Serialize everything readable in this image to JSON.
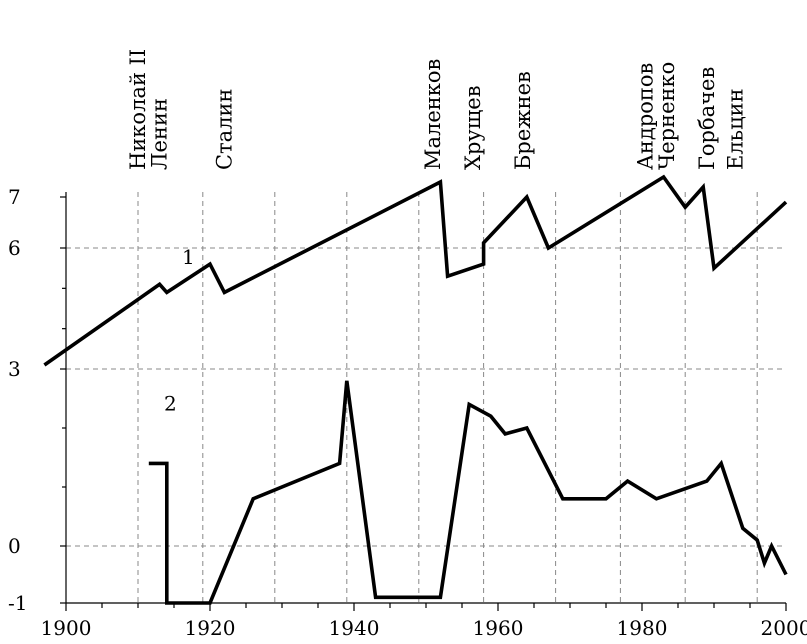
{
  "chart_data": {
    "type": "line",
    "title": "",
    "xlabel": "",
    "ylabel": "",
    "xlim": [
      1900,
      2000
    ],
    "ylim": [
      -1,
      7
    ],
    "grid": true,
    "xticks": [
      1900,
      1920,
      1940,
      1960,
      1980,
      2000
    ],
    "xtick_labels": [
      "1900",
      "1920",
      "1940",
      "1960",
      "1980",
      "2000"
    ],
    "yticks": [
      -1,
      0,
      3,
      6,
      7
    ],
    "ytick_labels": [
      "-1",
      "0",
      "3",
      "6",
      "7"
    ],
    "x_minor_ticks": [
      1905,
      1910,
      1915,
      1925,
      1930,
      1935,
      1945,
      1950,
      1955,
      1965,
      1970,
      1975,
      1985,
      1990,
      1995
    ],
    "grid_x": [
      1910,
      1919,
      1929,
      1939,
      1949,
      1958,
      1968,
      1977,
      1986,
      1996
    ],
    "grid_y": [
      0,
      3,
      6
    ],
    "leaders": [
      {
        "name": "Николай II",
        "x": 1910
      },
      {
        "name": "Ленин",
        "x": 1913
      },
      {
        "name": "Сталин",
        "x": 1922
      },
      {
        "name": "Маленков",
        "x": 1951
      },
      {
        "name": "Хрущев",
        "x": 1956.5
      },
      {
        "name": "Брежнев",
        "x": 1963.5
      },
      {
        "name": "Андропов",
        "x": 1980.5
      },
      {
        "name": "Черненко",
        "x": 1983.5
      },
      {
        "name": "Горбачев",
        "x": 1989
      },
      {
        "name": "Ельцин",
        "x": 1993
      }
    ],
    "series": [
      {
        "label": "1",
        "label_x": 1917,
        "label_y": 5.6,
        "x": [
          1897,
          1913,
          1914,
          1920,
          1922,
          1952,
          1953,
          1958,
          1958,
          1964,
          1967,
          1983,
          1986,
          1988.5,
          1990,
          2000
        ],
        "y": [
          3.1,
          5.1,
          4.9,
          5.6,
          4.9,
          7.3,
          5.3,
          5.6,
          6.1,
          7.0,
          6.0,
          7.4,
          6.8,
          7.2,
          5.5,
          6.9
        ]
      },
      {
        "label": "2",
        "label_x": 1914.5,
        "label_y": 2.3,
        "x": [
          1911.5,
          1914,
          1914,
          1920,
          1926,
          1938,
          1939,
          1943,
          1952,
          1956,
          1959,
          1961,
          1964,
          1969,
          1975,
          1978,
          1982,
          1989,
          1991,
          1994,
          1996,
          1997,
          1998,
          2000
        ],
        "y": [
          1.4,
          1.4,
          -1.0,
          -1.0,
          0.8,
          1.4,
          2.8,
          -0.9,
          -0.9,
          2.4,
          2.2,
          1.9,
          2.0,
          0.8,
          0.8,
          1.1,
          0.8,
          1.1,
          1.4,
          0.3,
          0.1,
          -0.3,
          0.0,
          -0.5
        ]
      }
    ]
  }
}
